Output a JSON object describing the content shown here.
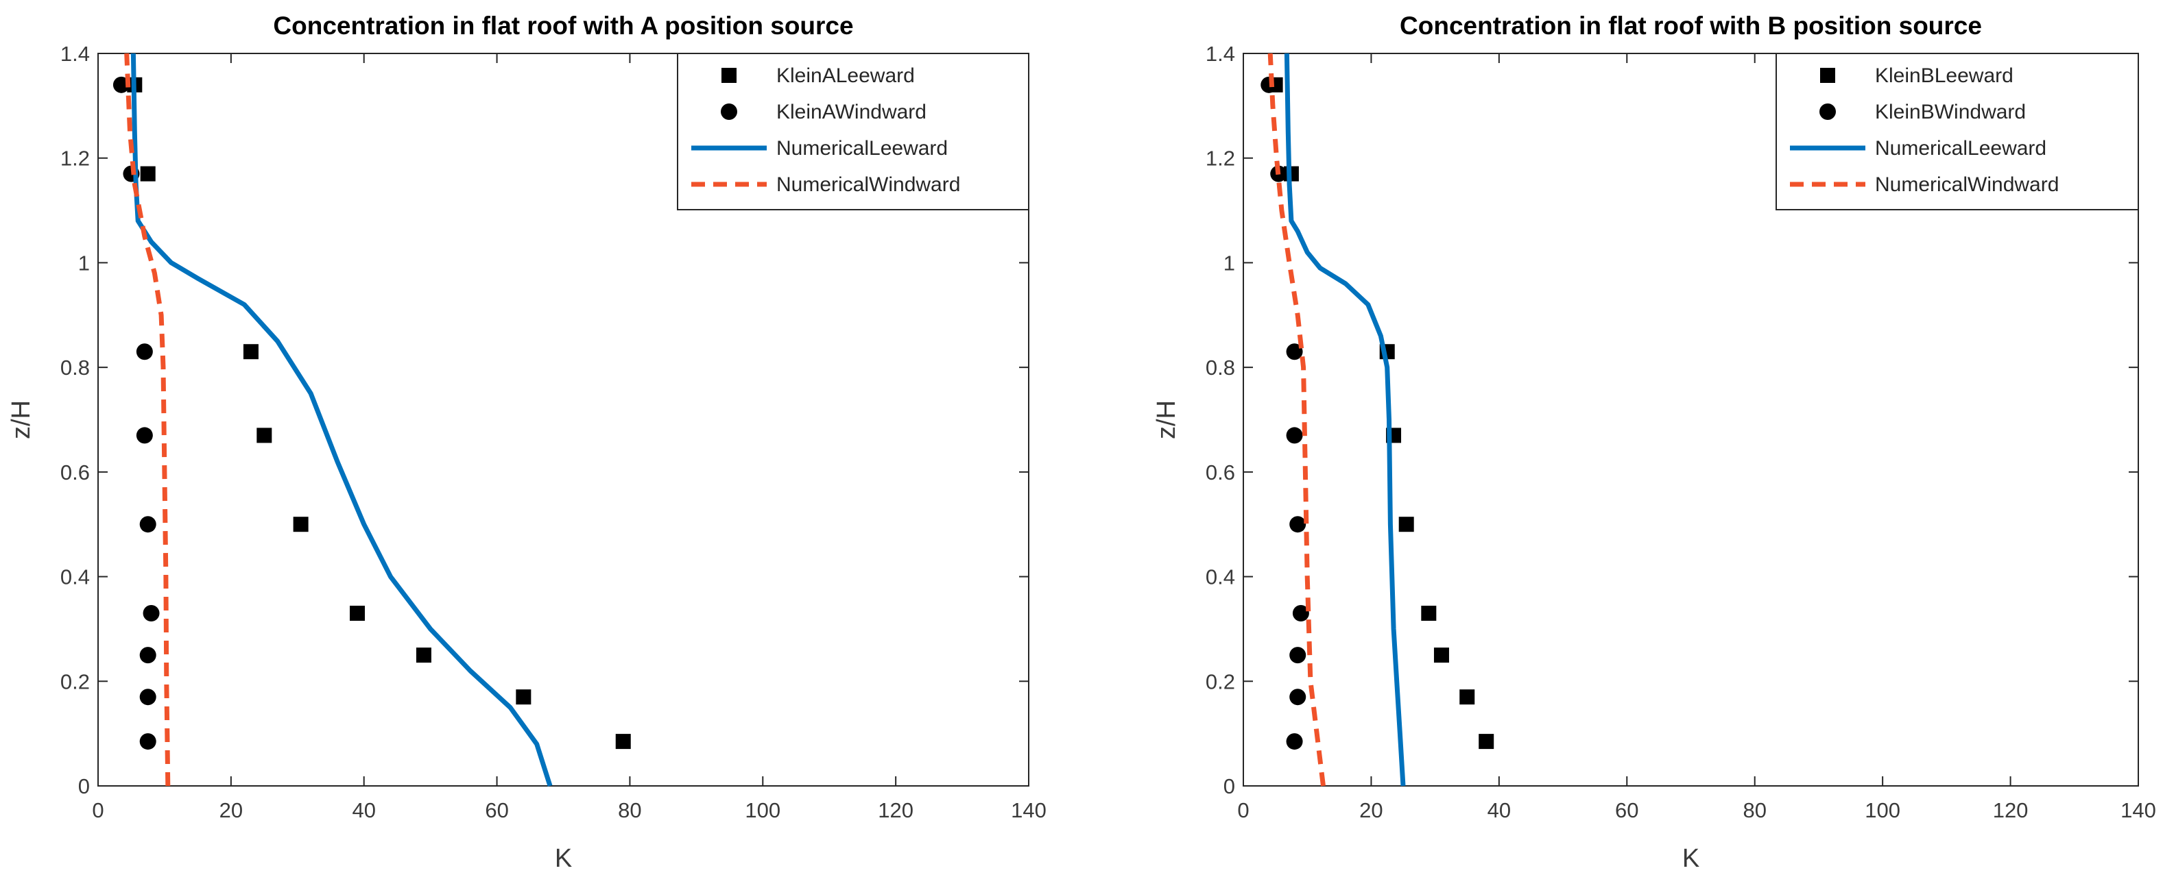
{
  "chart_data": [
    {
      "type": "line",
      "title": "Concentration in flat roof with A position source",
      "xlabel": "K",
      "ylabel": "z/H",
      "xlim": [
        0,
        140
      ],
      "ylim": [
        0,
        1.4
      ],
      "xticks": [
        "0",
        "20",
        "40",
        "60",
        "80",
        "100",
        "120",
        "140"
      ],
      "yticks": [
        "0",
        "0.2",
        "0.4",
        "0.6",
        "0.8",
        "1",
        "1.2",
        "1.4"
      ],
      "legend_position": "top-right",
      "series": [
        {
          "name": "KleinALeeward",
          "kind": "scatter",
          "marker": "square",
          "color": "#000000",
          "points": [
            [
              5.5,
              1.34
            ],
            [
              7.5,
              1.17
            ],
            [
              23,
              0.83
            ],
            [
              25,
              0.67
            ],
            [
              30.5,
              0.5
            ],
            [
              39,
              0.33
            ],
            [
              49,
              0.25
            ],
            [
              64,
              0.17
            ],
            [
              79,
              0.085
            ]
          ]
        },
        {
          "name": "KleinAWindward",
          "kind": "scatter",
          "marker": "circle",
          "color": "#000000",
          "points": [
            [
              3.5,
              1.34
            ],
            [
              5,
              1.17
            ],
            [
              7,
              0.83
            ],
            [
              7,
              0.67
            ],
            [
              7.5,
              0.5
            ],
            [
              8,
              0.33
            ],
            [
              7.5,
              0.25
            ],
            [
              7.5,
              0.17
            ],
            [
              7.5,
              0.085
            ]
          ]
        },
        {
          "name": "NumericalLeeward",
          "kind": "line",
          "style": "solid",
          "color": "#0072BD",
          "points": [
            [
              68,
              0
            ],
            [
              66,
              0.08
            ],
            [
              62,
              0.15
            ],
            [
              56,
              0.22
            ],
            [
              50,
              0.3
            ],
            [
              44,
              0.4
            ],
            [
              40,
              0.5
            ],
            [
              36,
              0.62
            ],
            [
              32,
              0.75
            ],
            [
              27,
              0.85
            ],
            [
              22,
              0.92
            ],
            [
              15,
              0.97
            ],
            [
              11,
              1.0
            ],
            [
              8,
              1.04
            ],
            [
              6,
              1.08
            ],
            [
              5.7,
              1.15
            ],
            [
              5.5,
              1.25
            ],
            [
              5.3,
              1.4
            ]
          ]
        },
        {
          "name": "NumericalWindward",
          "kind": "line",
          "style": "dashed",
          "color": "#F0522A",
          "points": [
            [
              10.5,
              0
            ],
            [
              10.3,
              0.2
            ],
            [
              10.2,
              0.4
            ],
            [
              10,
              0.6
            ],
            [
              9.8,
              0.8
            ],
            [
              9.5,
              0.9
            ],
            [
              8.5,
              0.98
            ],
            [
              7,
              1.05
            ],
            [
              5.5,
              1.15
            ],
            [
              4.8,
              1.25
            ],
            [
              4.3,
              1.4
            ]
          ]
        }
      ]
    },
    {
      "type": "line",
      "title": "Concentration in flat roof with B position source",
      "xlabel": "K",
      "ylabel": "z/H",
      "xlim": [
        0,
        140
      ],
      "ylim": [
        0,
        1.4
      ],
      "xticks": [
        "0",
        "20",
        "40",
        "60",
        "80",
        "100",
        "120",
        "140"
      ],
      "yticks": [
        "0",
        "0.2",
        "0.4",
        "0.6",
        "0.8",
        "1",
        "1.2",
        "1.4"
      ],
      "legend_position": "top-right",
      "series": [
        {
          "name": "KleinBLeeward",
          "kind": "scatter",
          "marker": "square",
          "color": "#000000",
          "points": [
            [
              5,
              1.34
            ],
            [
              7.5,
              1.17
            ],
            [
              22.5,
              0.83
            ],
            [
              23.5,
              0.67
            ],
            [
              25.5,
              0.5
            ],
            [
              29,
              0.33
            ],
            [
              31,
              0.25
            ],
            [
              35,
              0.17
            ],
            [
              38,
              0.085
            ]
          ]
        },
        {
          "name": "KleinBWindward",
          "kind": "scatter",
          "marker": "circle",
          "color": "#000000",
          "points": [
            [
              4,
              1.34
            ],
            [
              5.5,
              1.17
            ],
            [
              8,
              0.83
            ],
            [
              8,
              0.67
            ],
            [
              8.5,
              0.5
            ],
            [
              9,
              0.33
            ],
            [
              8.5,
              0.25
            ],
            [
              8.5,
              0.17
            ],
            [
              8,
              0.085
            ]
          ]
        },
        {
          "name": "NumericalLeeward",
          "kind": "line",
          "style": "solid",
          "color": "#0072BD",
          "points": [
            [
              25,
              0
            ],
            [
              24.5,
              0.1
            ],
            [
              24,
              0.2
            ],
            [
              23.5,
              0.3
            ],
            [
              23,
              0.5
            ],
            [
              22.8,
              0.7
            ],
            [
              22.5,
              0.8
            ],
            [
              21.5,
              0.86
            ],
            [
              19.5,
              0.92
            ],
            [
              16,
              0.96
            ],
            [
              12,
              0.99
            ],
            [
              10,
              1.02
            ],
            [
              8.5,
              1.06
            ],
            [
              7.5,
              1.08
            ],
            [
              7.2,
              1.15
            ],
            [
              7,
              1.25
            ],
            [
              6.8,
              1.4
            ]
          ]
        },
        {
          "name": "NumericalWindward",
          "kind": "line",
          "style": "dashed",
          "color": "#F0522A",
          "points": [
            [
              12.5,
              0
            ],
            [
              11.5,
              0.1
            ],
            [
              10.5,
              0.2
            ],
            [
              10,
              0.4
            ],
            [
              9.7,
              0.6
            ],
            [
              9.4,
              0.8
            ],
            [
              8.5,
              0.9
            ],
            [
              7.2,
              1.0
            ],
            [
              6,
              1.1
            ],
            [
              5.2,
              1.2
            ],
            [
              4.6,
              1.3
            ],
            [
              4.2,
              1.4
            ]
          ]
        }
      ]
    }
  ]
}
